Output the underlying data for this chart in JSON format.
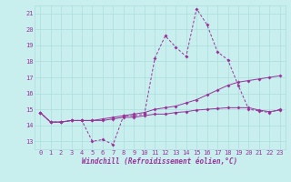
{
  "xlabel": "Windchill (Refroidissement éolien,°C)",
  "bg_color": "#c8eeee",
  "grid_color": "#aadddd",
  "line_color": "#993399",
  "xlim": [
    -0.5,
    23.5
  ],
  "ylim": [
    12.5,
    21.5
  ],
  "yticks": [
    13,
    14,
    15,
    16,
    17,
    18,
    19,
    20,
    21
  ],
  "xticks": [
    0,
    1,
    2,
    3,
    4,
    5,
    6,
    7,
    8,
    9,
    10,
    11,
    12,
    13,
    14,
    15,
    16,
    17,
    18,
    19,
    20,
    21,
    22,
    23
  ],
  "line1_x": [
    0,
    1,
    2,
    3,
    4,
    5,
    6,
    7,
    8,
    9,
    10,
    11,
    12,
    13,
    14,
    15,
    16,
    17,
    18,
    19,
    20,
    21,
    22,
    23
  ],
  "line1_y": [
    14.8,
    14.2,
    14.2,
    14.3,
    14.3,
    13.0,
    13.1,
    12.8,
    14.6,
    14.6,
    14.7,
    18.2,
    19.6,
    18.9,
    18.3,
    21.3,
    20.3,
    18.6,
    18.1,
    16.5,
    15.0,
    14.9,
    14.8,
    15.0
  ],
  "line2_x": [
    0,
    1,
    2,
    3,
    4,
    5,
    6,
    7,
    8,
    9,
    10,
    11,
    12,
    13,
    14,
    15,
    16,
    17,
    18,
    19,
    20,
    21,
    22,
    23
  ],
  "line2_y": [
    14.8,
    14.2,
    14.2,
    14.3,
    14.3,
    14.3,
    14.4,
    14.5,
    14.6,
    14.7,
    14.8,
    15.0,
    15.1,
    15.2,
    15.4,
    15.6,
    15.9,
    16.2,
    16.5,
    16.7,
    16.8,
    16.9,
    17.0,
    17.1
  ],
  "line3_x": [
    0,
    1,
    2,
    3,
    4,
    5,
    6,
    7,
    8,
    9,
    10,
    11,
    12,
    13,
    14,
    15,
    16,
    17,
    18,
    19,
    20,
    21,
    22,
    23
  ],
  "line3_y": [
    14.8,
    14.2,
    14.2,
    14.3,
    14.3,
    14.3,
    14.3,
    14.4,
    14.5,
    14.5,
    14.6,
    14.7,
    14.7,
    14.8,
    14.85,
    14.95,
    15.0,
    15.05,
    15.1,
    15.1,
    15.1,
    14.95,
    14.85,
    14.95
  ]
}
